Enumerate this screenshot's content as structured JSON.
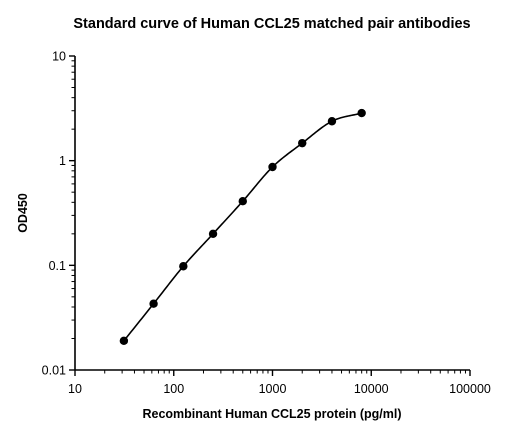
{
  "chart_data": {
    "type": "scatter",
    "title": "Standard curve of Human CCL25 matched pair antibodies",
    "xlabel": "Recombinant Human CCL25 protein (pg/ml)",
    "ylabel": "OD450",
    "xscale": "log",
    "yscale": "log",
    "xlim": [
      10,
      100000
    ],
    "ylim": [
      0.01,
      10
    ],
    "x_ticks": [
      "10",
      "100",
      "1000",
      "10000",
      "100000"
    ],
    "y_ticks": [
      "0.01",
      "0.1",
      "1",
      "10"
    ],
    "grid": false,
    "series": [
      {
        "x": [
          31.25,
          62.5,
          125,
          250,
          500,
          1000,
          2000,
          4000,
          8000
        ],
        "y": [
          0.019,
          0.043,
          0.098,
          0.2,
          0.41,
          0.87,
          1.47,
          2.38,
          2.85
        ],
        "fit_curve": true
      }
    ],
    "colors": {
      "marker": "#000000",
      "curve": "#000000",
      "axis": "#000000"
    }
  }
}
